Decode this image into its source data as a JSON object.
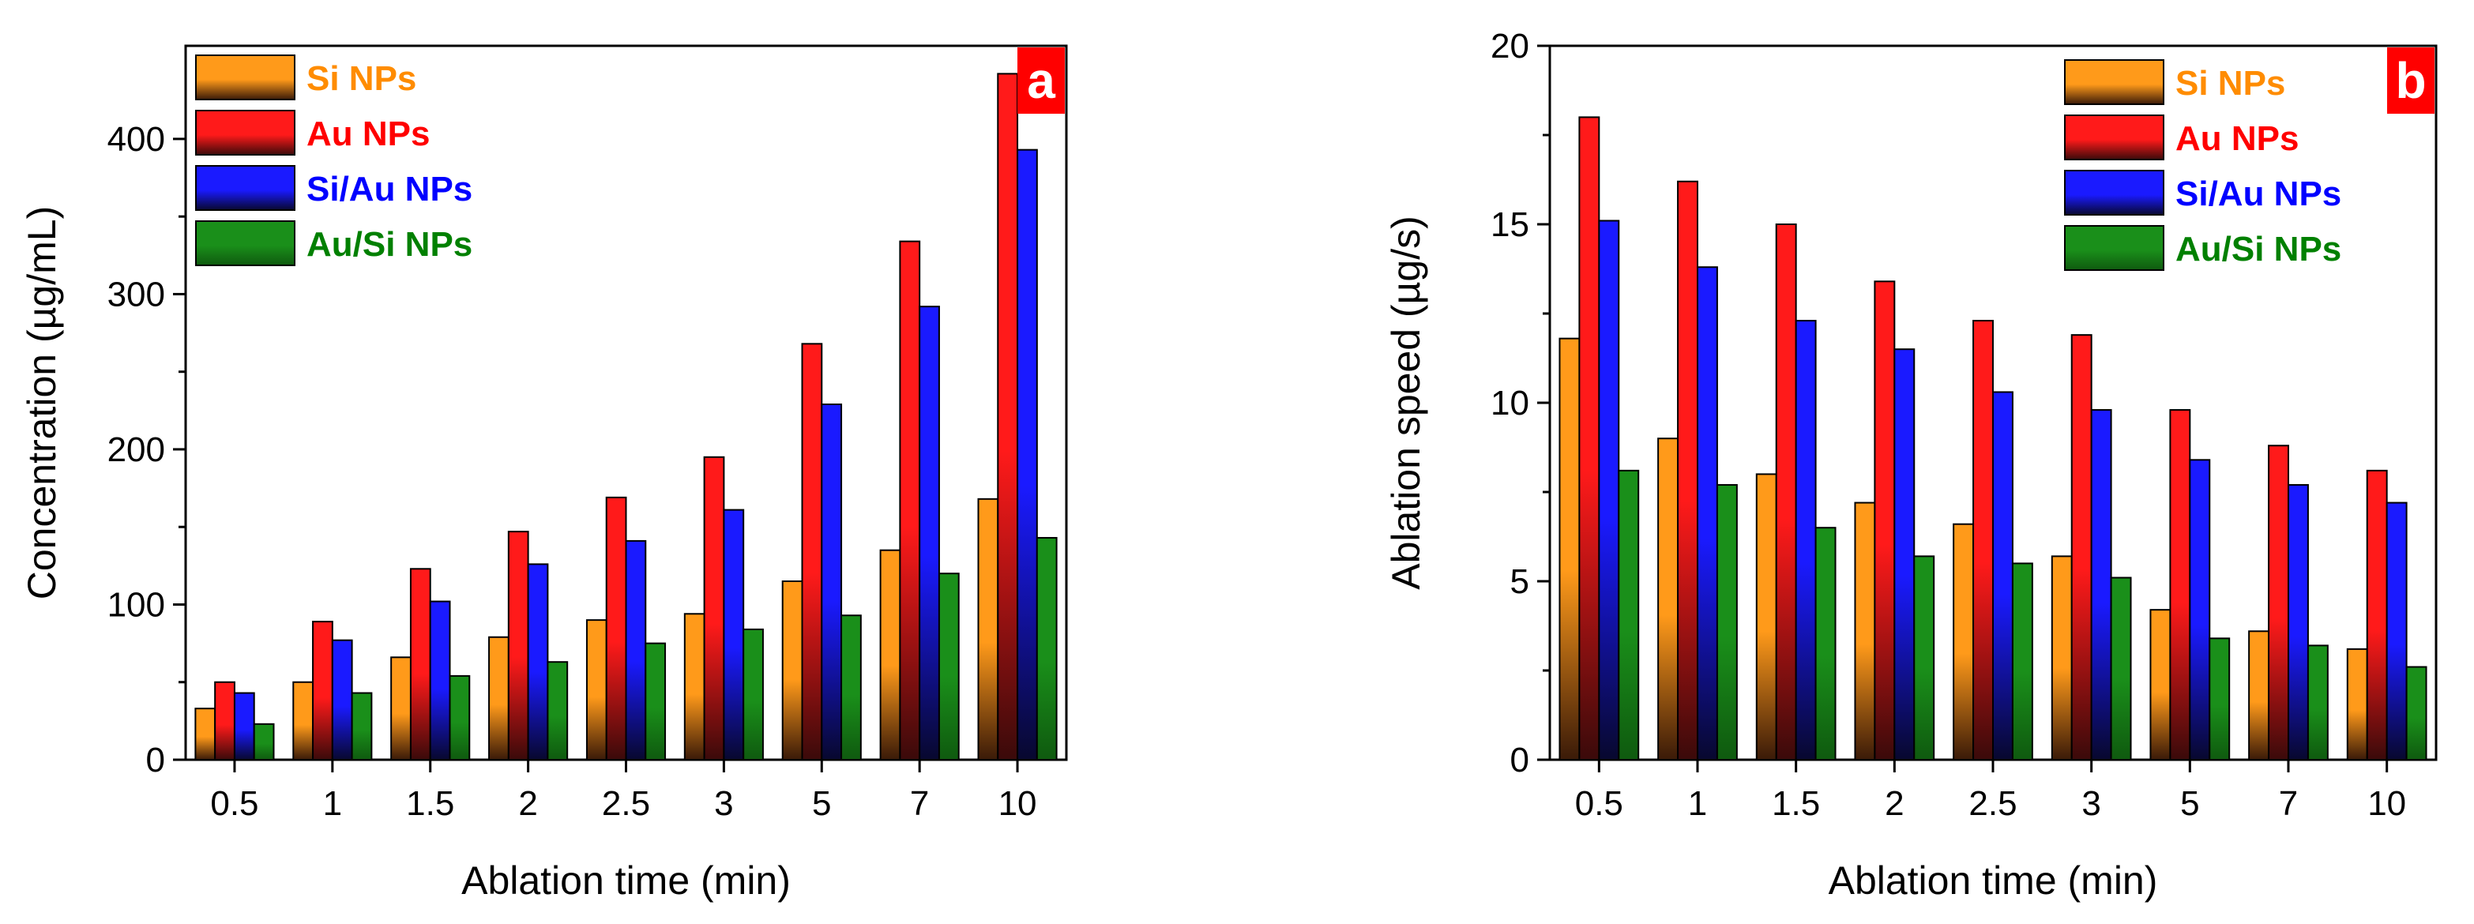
{
  "chart_data": [
    {
      "type": "bar",
      "panel_label": "a",
      "categories": [
        "0.5",
        "1",
        "1.5",
        "2",
        "2.5",
        "3",
        "5",
        "7",
        "10"
      ],
      "series": [
        {
          "name": "Si NPs",
          "values": [
            33,
            50,
            66,
            79,
            90,
            94,
            115,
            135,
            168
          ]
        },
        {
          "name": "Au NPs",
          "values": [
            50,
            89,
            123,
            147,
            169,
            195,
            268,
            334,
            442
          ]
        },
        {
          "name": "Si/Au NPs",
          "values": [
            43,
            77,
            102,
            126,
            141,
            161,
            229,
            292,
            393
          ]
        },
        {
          "name": "Au/Si NPs",
          "values": [
            23,
            43,
            54,
            63,
            75,
            84,
            93,
            120,
            143
          ]
        }
      ],
      "title": "",
      "xlabel": "Ablation time (min)",
      "ylabel": "Concentration (µg/mL)",
      "ylim": [
        0,
        460
      ],
      "yticks": [
        0,
        100,
        200,
        300,
        400
      ],
      "legend_position": "top-left"
    },
    {
      "type": "bar",
      "panel_label": "b",
      "categories": [
        "0.5",
        "1",
        "1.5",
        "2",
        "2.5",
        "3",
        "5",
        "7",
        "10"
      ],
      "series": [
        {
          "name": "Si NPs",
          "values": [
            11.8,
            9.0,
            8.0,
            7.2,
            6.6,
            5.7,
            4.2,
            3.6,
            3.1
          ]
        },
        {
          "name": "Au NPs",
          "values": [
            18.0,
            16.2,
            15.0,
            13.4,
            12.3,
            11.9,
            9.8,
            8.8,
            8.1
          ]
        },
        {
          "name": "Si/Au NPs",
          "values": [
            15.1,
            13.8,
            12.3,
            11.5,
            10.3,
            9.8,
            8.4,
            7.7,
            7.2
          ]
        },
        {
          "name": "Au/Si NPs",
          "values": [
            8.1,
            7.7,
            6.5,
            5.7,
            5.5,
            5.1,
            3.4,
            3.2,
            2.6
          ]
        }
      ],
      "title": "",
      "xlabel": "Ablation time (min)",
      "ylabel": "Ablation speed (µg/s)",
      "ylim": [
        0,
        20
      ],
      "yticks": [
        0,
        5,
        10,
        15,
        20
      ],
      "legend_position": "top-right"
    }
  ],
  "colors": {
    "series_top": [
      "#ff9a1a",
      "#ff1a1a",
      "#1a1aff",
      "#1a8f1a"
    ],
    "series_bottom": [
      "#3a1a08",
      "#3a0a0a",
      "#08082e",
      "#0f5a0f"
    ],
    "legend_text": [
      "#ff8c00",
      "#ff0000",
      "#0000ff",
      "#008000"
    ],
    "panel_letter_bg": "#ff0000"
  }
}
